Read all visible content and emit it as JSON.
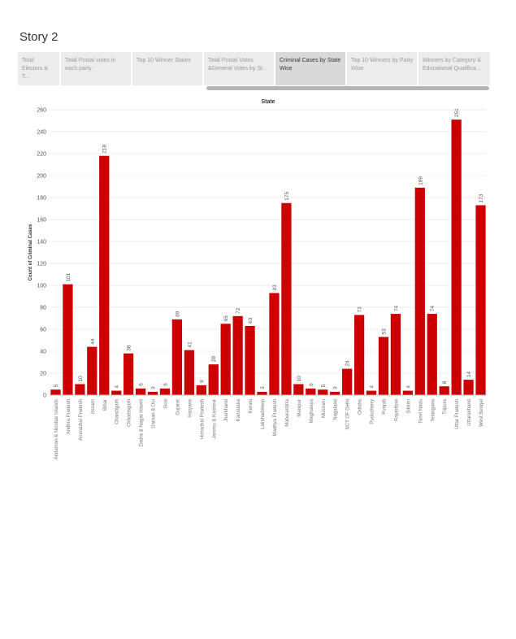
{
  "story": {
    "title": "Story 2"
  },
  "tabs": [
    {
      "label": "Total Electors & T...",
      "active": false
    },
    {
      "label": "Total Postal votes in each party",
      "active": false
    },
    {
      "label": "Top 10 Winner States",
      "active": false
    },
    {
      "label": "Total Postal Votes &General Votes by St...",
      "active": false
    },
    {
      "label": "Criminal Cases by State Wise",
      "active": true
    },
    {
      "label": "Top 10 Winners by Party Wise",
      "active": false
    },
    {
      "label": "Winners by Category & Educational Qualifica...",
      "active": false
    }
  ],
  "colors": {
    "bar": "#cc0000",
    "grid": "#eeeeee",
    "text": "#555555"
  },
  "chart_data": {
    "type": "bar",
    "title": "",
    "xlabel": "State",
    "ylabel": "Count of Criminal Cases",
    "ylim": [
      0,
      260
    ],
    "yticks": [
      0,
      20,
      40,
      60,
      80,
      100,
      120,
      140,
      160,
      180,
      200,
      220,
      240,
      260
    ],
    "categories": [
      "Andaman & Nicobar Islands",
      "Andhra Pradesh",
      "Arunachal Pradesh",
      "Assam",
      "Bihar",
      "Chandigarh",
      "Chhattisgarh",
      "Dadra & Nagar Haveli",
      "Daman & Diu",
      "Goa",
      "Gujarat",
      "Haryana",
      "Himachal Pradesh",
      "Jammu & Kashmir",
      "Jharkhand",
      "Karnataka",
      "Kerala",
      "Lakshadweep",
      "Madhya Pradesh",
      "Maharashtra",
      "Manipur",
      "Meghalaya",
      "Mizoram",
      "Nagaland",
      "NCT OF Delhi",
      "Odisha",
      "Puducherry",
      "Punjab",
      "Rajasthan",
      "Sikkim",
      "Tamil Nadu",
      "Telangana",
      "Tripura",
      "Uttar Pradesh",
      "Uttarakhand",
      "West Bengal"
    ],
    "values": [
      5,
      101,
      10,
      44,
      218,
      4,
      38,
      6,
      3,
      6,
      69,
      41,
      9,
      28,
      65,
      72,
      63,
      3,
      93,
      175,
      10,
      6,
      5,
      3,
      24,
      73,
      4,
      53,
      74,
      4,
      189,
      74,
      8,
      251,
      14,
      173
    ],
    "grid": true,
    "data_labels": true
  }
}
